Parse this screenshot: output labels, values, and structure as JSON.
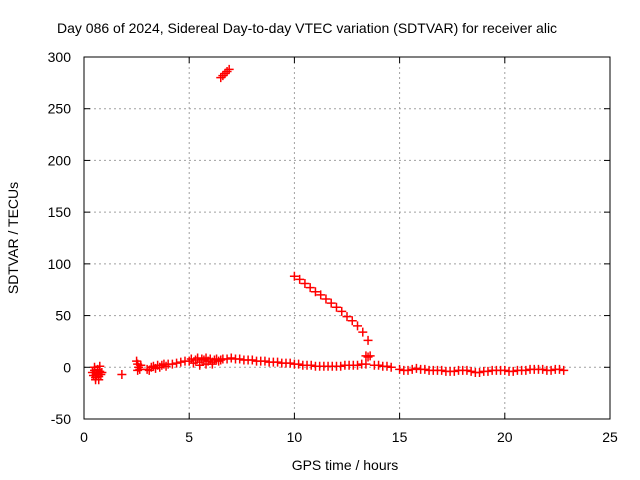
{
  "chart_data": {
    "type": "scatter",
    "title": "Day 086 of 2024, Sidereal Day-to-day VTEC variation (SDTVAR) for receiver alic",
    "xlabel": "GPS time / hours",
    "ylabel": "SDTVAR / TECUs",
    "xlim": [
      0,
      25
    ],
    "ylim": [
      -50,
      300
    ],
    "xticks": [
      0,
      5,
      10,
      15,
      20,
      25
    ],
    "yticks": [
      -50,
      0,
      50,
      100,
      150,
      200,
      250,
      300
    ],
    "grid": true,
    "marker": "+",
    "color": "#ff0000",
    "points": [
      [
        0.4,
        -5
      ],
      [
        0.45,
        -8
      ],
      [
        0.5,
        -3
      ],
      [
        0.55,
        -10
      ],
      [
        0.6,
        -6
      ],
      [
        0.65,
        -2
      ],
      [
        0.7,
        -9
      ],
      [
        0.75,
        -4
      ],
      [
        0.8,
        -7
      ],
      [
        0.85,
        -5
      ],
      [
        0.55,
        -12
      ],
      [
        0.7,
        -12
      ],
      [
        0.5,
        0
      ],
      [
        0.75,
        1
      ],
      [
        0.6,
        -7
      ],
      [
        1.8,
        -7
      ],
      [
        2.5,
        6
      ],
      [
        2.55,
        3
      ],
      [
        2.6,
        0
      ],
      [
        2.65,
        -2
      ],
      [
        2.55,
        -3
      ],
      [
        2.7,
        2
      ],
      [
        3.0,
        -2
      ],
      [
        3.1,
        -3
      ],
      [
        3.2,
        0
      ],
      [
        3.3,
        1
      ],
      [
        3.4,
        -1
      ],
      [
        3.5,
        2
      ],
      [
        3.6,
        0
      ],
      [
        3.7,
        2
      ],
      [
        3.8,
        3
      ],
      [
        3.9,
        1
      ],
      [
        4.0,
        3
      ],
      [
        4.2,
        3
      ],
      [
        4.4,
        4
      ],
      [
        4.6,
        5
      ],
      [
        4.8,
        6
      ],
      [
        5.0,
        6
      ],
      [
        5.1,
        8
      ],
      [
        5.2,
        4
      ],
      [
        5.3,
        7
      ],
      [
        5.4,
        9
      ],
      [
        5.5,
        5
      ],
      [
        5.6,
        8
      ],
      [
        5.7,
        7
      ],
      [
        5.8,
        9
      ],
      [
        5.9,
        6
      ],
      [
        6.0,
        8
      ],
      [
        6.1,
        5
      ],
      [
        6.2,
        7
      ],
      [
        6.3,
        8
      ],
      [
        6.4,
        6
      ],
      [
        6.5,
        7
      ],
      [
        5.5,
        2
      ],
      [
        5.8,
        3
      ],
      [
        6.1,
        3
      ],
      [
        6.6,
        8
      ],
      [
        6.8,
        8
      ],
      [
        7.0,
        9
      ],
      [
        7.2,
        8
      ],
      [
        7.4,
        8
      ],
      [
        7.6,
        7
      ],
      [
        7.8,
        7
      ],
      [
        8.0,
        7
      ],
      [
        8.2,
        6
      ],
      [
        8.4,
        6
      ],
      [
        8.6,
        6
      ],
      [
        8.8,
        5
      ],
      [
        9.0,
        5
      ],
      [
        9.2,
        5
      ],
      [
        9.4,
        4
      ],
      [
        9.6,
        4
      ],
      [
        9.8,
        4
      ],
      [
        10.0,
        3
      ],
      [
        10.2,
        3
      ],
      [
        10.4,
        2
      ],
      [
        10.6,
        2
      ],
      [
        10.8,
        2
      ],
      [
        11.0,
        1
      ],
      [
        11.2,
        1
      ],
      [
        11.4,
        1
      ],
      [
        11.6,
        1
      ],
      [
        11.8,
        1
      ],
      [
        12.0,
        1
      ],
      [
        12.2,
        1
      ],
      [
        12.4,
        2
      ],
      [
        12.6,
        2
      ],
      [
        12.8,
        2
      ],
      [
        13.0,
        2
      ],
      [
        13.2,
        3
      ],
      [
        13.4,
        3
      ],
      [
        13.4,
        11
      ],
      [
        13.5,
        10
      ],
      [
        13.6,
        11
      ],
      [
        13.8,
        2
      ],
      [
        14.0,
        2
      ],
      [
        14.2,
        1
      ],
      [
        14.4,
        1
      ],
      [
        14.6,
        0
      ],
      [
        15.0,
        -2
      ],
      [
        15.2,
        -3
      ],
      [
        15.4,
        -3
      ],
      [
        15.6,
        -2
      ],
      [
        15.8,
        -1
      ],
      [
        16.0,
        -2
      ],
      [
        16.2,
        -2
      ],
      [
        16.4,
        -3
      ],
      [
        16.6,
        -3
      ],
      [
        16.8,
        -3
      ],
      [
        17.0,
        -3
      ],
      [
        17.2,
        -4
      ],
      [
        17.4,
        -4
      ],
      [
        17.6,
        -4
      ],
      [
        17.8,
        -3
      ],
      [
        18.0,
        -3
      ],
      [
        18.2,
        -3
      ],
      [
        18.4,
        -4
      ],
      [
        18.6,
        -5
      ],
      [
        18.8,
        -5
      ],
      [
        19.0,
        -4
      ],
      [
        19.2,
        -4
      ],
      [
        19.4,
        -3
      ],
      [
        19.6,
        -3
      ],
      [
        19.8,
        -3
      ],
      [
        20.0,
        -3
      ],
      [
        20.2,
        -4
      ],
      [
        20.4,
        -4
      ],
      [
        20.6,
        -3
      ],
      [
        20.8,
        -3
      ],
      [
        21.0,
        -3
      ],
      [
        21.2,
        -2
      ],
      [
        21.4,
        -2
      ],
      [
        21.6,
        -2
      ],
      [
        21.8,
        -2
      ],
      [
        22.0,
        -3
      ],
      [
        22.2,
        -3
      ],
      [
        22.4,
        -2
      ],
      [
        22.6,
        -2
      ],
      [
        22.8,
        -3
      ],
      [
        10.0,
        88
      ],
      [
        10.25,
        85
      ],
      [
        10.5,
        81
      ],
      [
        10.75,
        77
      ],
      [
        11.0,
        73
      ],
      [
        11.25,
        70
      ],
      [
        11.5,
        66
      ],
      [
        11.75,
        62
      ],
      [
        12.0,
        58
      ],
      [
        12.25,
        54
      ],
      [
        12.5,
        49
      ],
      [
        12.75,
        45
      ],
      [
        13.0,
        40
      ],
      [
        13.25,
        34
      ],
      [
        13.5,
        26
      ],
      [
        6.5,
        280
      ],
      [
        6.6,
        282
      ],
      [
        6.7,
        284
      ],
      [
        6.8,
        286
      ],
      [
        6.9,
        288
      ]
    ]
  }
}
